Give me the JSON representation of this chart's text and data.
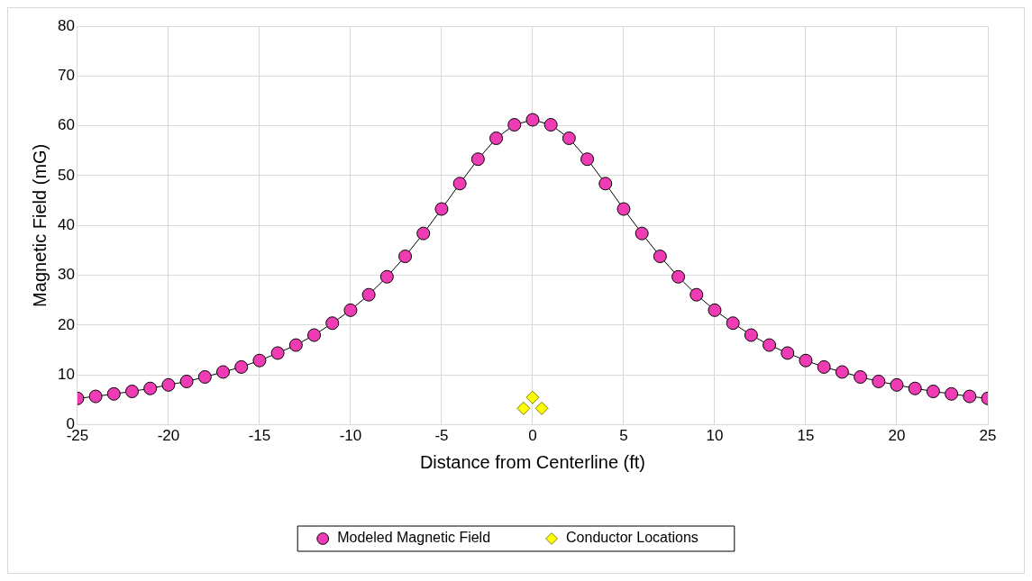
{
  "chart_data": {
    "type": "line",
    "xlabel": "Distance from Centerline (ft)",
    "ylabel": "Magnetic Field (mG)",
    "xlim": [
      -25,
      25
    ],
    "xticks": [
      -25,
      -20,
      -15,
      -10,
      -5,
      0,
      5,
      10,
      15,
      20,
      25
    ],
    "ylim": [
      0,
      80
    ],
    "yticks": [
      0,
      10,
      20,
      30,
      40,
      50,
      60,
      70,
      80
    ],
    "grid": true,
    "legend": "bottom",
    "marker": "circle",
    "line_style": "solid",
    "series": [
      {
        "name": "Modeled Magnetic Field",
        "type": "line",
        "color": "#f03cb4",
        "x": [
          -25,
          -24,
          -23,
          -22,
          -21,
          -20,
          -19,
          -18,
          -17,
          -16,
          -15,
          -14,
          -13,
          -12,
          -11,
          -10,
          -9,
          -8,
          -7,
          -6,
          -5,
          -4,
          -3,
          -2,
          -1,
          0,
          1,
          2,
          3,
          4,
          5,
          6,
          7,
          8,
          9,
          10,
          11,
          12,
          13,
          14,
          15,
          16,
          17,
          18,
          19,
          20,
          21,
          22,
          23,
          24,
          25
        ],
        "values": [
          5.3,
          5.7,
          6.2,
          6.7,
          7.3,
          8.0,
          8.7,
          9.6,
          10.6,
          11.6,
          12.9,
          14.4,
          16.0,
          18.0,
          20.4,
          23.0,
          26.1,
          29.7,
          33.8,
          38.4,
          43.3,
          48.4,
          53.3,
          57.5,
          60.2,
          61.2,
          60.2,
          57.5,
          53.3,
          48.4,
          43.3,
          38.4,
          33.8,
          29.7,
          26.1,
          23.0,
          20.4,
          18.0,
          16.0,
          14.4,
          12.9,
          11.6,
          10.6,
          9.6,
          8.7,
          8.0,
          7.3,
          6.7,
          6.2,
          5.7,
          5.3
        ]
      },
      {
        "name": "Conductor Locations",
        "type": "scatter",
        "marker": "diamond",
        "color": "#ffff00",
        "x": [
          -0.5,
          0,
          0.5
        ],
        "values": [
          3.3,
          5.5,
          3.3
        ]
      }
    ]
  }
}
